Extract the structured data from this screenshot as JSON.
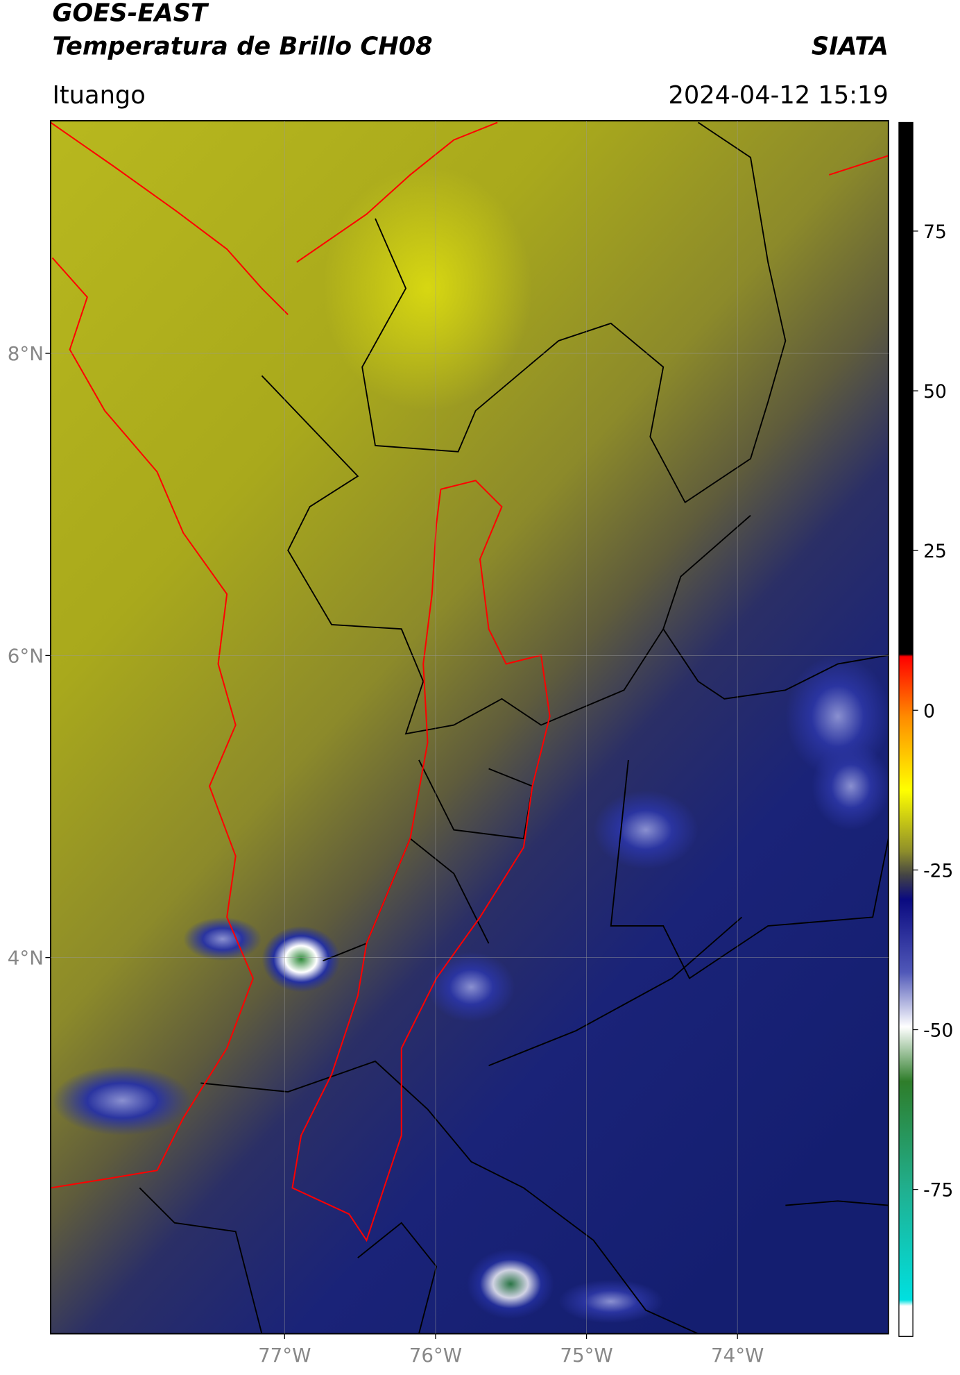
{
  "header": {
    "title": "GOES-EAST",
    "subtitle": "Temperatura de Brillo CH08",
    "organization": "SIATA",
    "location": "Ituango",
    "datetime": "2024-04-12 15:19"
  },
  "map": {
    "xlim": [
      -78.55,
      -73.0
    ],
    "ylim": [
      1.51,
      9.54
    ],
    "xticks": [
      {
        "value": -77,
        "label": "77°W"
      },
      {
        "value": -76,
        "label": "76°W"
      },
      {
        "value": -75,
        "label": "75°W"
      },
      {
        "value": -74,
        "label": "74°W"
      }
    ],
    "yticks": [
      {
        "value": 4,
        "label": "4°N"
      },
      {
        "value": 6,
        "label": "6°N"
      },
      {
        "value": 8,
        "label": "8°N"
      }
    ],
    "grid": true
  },
  "colorbar": {
    "lim": [
      -98,
      92
    ],
    "ticks": [
      -75,
      -50,
      -25,
      0,
      25,
      50,
      75
    ]
  }
}
